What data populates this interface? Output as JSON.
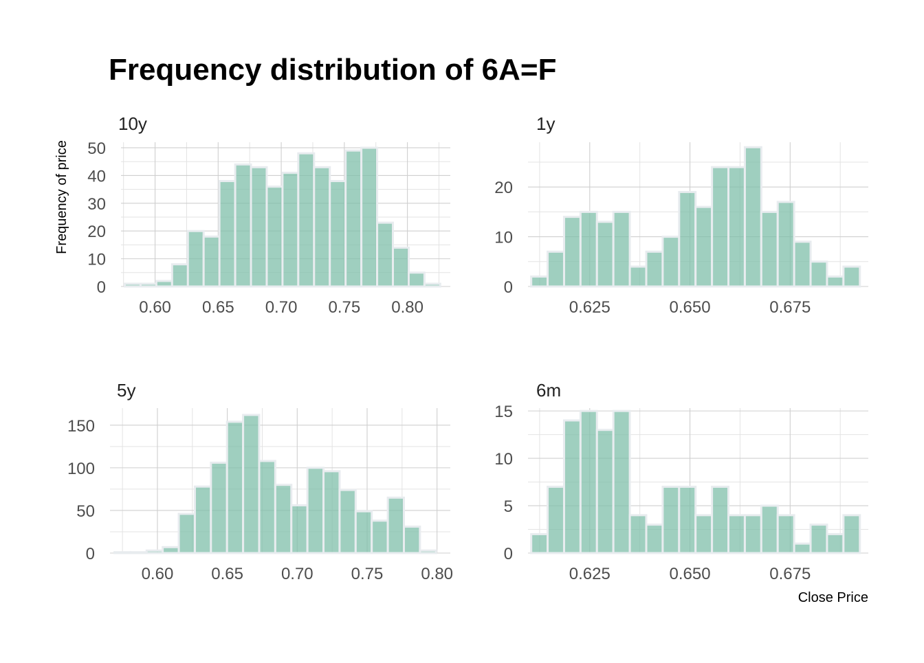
{
  "chart_data": [
    {
      "type": "bar",
      "panel": "10y",
      "title": "Frequency distribution of 6A=F",
      "ylabel": "Frequency of price",
      "xlabel": "",
      "bin_width": 0.0125,
      "x_start": 0.576,
      "xlim": [
        0.573,
        0.834
      ],
      "ylim": [
        0,
        52
      ],
      "x_ticks": [
        0.6,
        0.65,
        0.7,
        0.75,
        0.8
      ],
      "x_tick_labels": [
        "0.60",
        "0.65",
        "0.70",
        "0.75",
        "0.80"
      ],
      "y_ticks": [
        0,
        10,
        20,
        30,
        40,
        50
      ],
      "y_tick_labels": [
        "0",
        "10",
        "20",
        "30",
        "40",
        "50"
      ],
      "values": [
        1,
        1,
        2,
        8,
        20,
        18,
        38,
        44,
        43,
        36,
        41,
        48,
        43,
        38,
        49,
        50,
        23,
        14,
        5,
        1
      ],
      "grid": true
    },
    {
      "type": "bar",
      "panel": "1y",
      "ylabel": "",
      "xlabel": "",
      "bin_width": 0.0041,
      "x_start": 0.6104,
      "xlim": [
        0.6096,
        0.6945
      ],
      "ylim": [
        0,
        29
      ],
      "x_ticks": [
        0.625,
        0.65,
        0.675
      ],
      "x_tick_labels": [
        "0.625",
        "0.650",
        "0.675"
      ],
      "y_ticks": [
        0,
        10,
        20
      ],
      "y_tick_labels": [
        "0",
        "10",
        "20"
      ],
      "values": [
        2,
        7,
        14,
        15,
        13,
        15,
        4,
        7,
        10,
        19,
        16,
        24,
        24,
        28,
        15,
        17,
        9,
        5,
        2,
        4
      ],
      "grid": true
    },
    {
      "type": "bar",
      "panel": "5y",
      "ylabel": "",
      "xlabel": "",
      "bin_width": 0.0115,
      "x_start": 0.5693,
      "xlim": [
        0.5661,
        0.8095
      ],
      "ylim": [
        0,
        170
      ],
      "x_ticks": [
        0.6,
        0.65,
        0.7,
        0.75,
        0.8
      ],
      "x_tick_labels": [
        "0.60",
        "0.65",
        "0.70",
        "0.75",
        "0.80"
      ],
      "y_ticks": [
        0,
        50,
        100,
        150
      ],
      "y_tick_labels": [
        "0",
        "50",
        "100",
        "150"
      ],
      "values": [
        1,
        1,
        3,
        7,
        46,
        78,
        106,
        154,
        162,
        108,
        80,
        56,
        100,
        96,
        74,
        49,
        38,
        65,
        31,
        3
      ],
      "grid": true
    },
    {
      "type": "bar",
      "panel": "6m",
      "ylabel": "",
      "xlabel": "Close Price",
      "bin_width": 0.0041,
      "x_start": 0.6104,
      "xlim": [
        0.6096,
        0.6945
      ],
      "ylim": [
        0,
        15.3
      ],
      "x_ticks": [
        0.625,
        0.65,
        0.675
      ],
      "x_tick_labels": [
        "0.625",
        "0.650",
        "0.675"
      ],
      "y_ticks": [
        0,
        5,
        10,
        15
      ],
      "y_tick_labels": [
        "0",
        "5",
        "10",
        "15"
      ],
      "values": [
        2,
        7,
        14,
        15,
        13,
        15,
        4,
        3,
        7,
        7,
        4,
        7,
        4,
        4,
        5,
        4,
        1,
        3,
        2,
        4
      ],
      "grid": true
    }
  ],
  "colors": {
    "bar_fill": "#7fbfaa",
    "bar_edge": "#e8ecef",
    "grid": "#cfcfcf",
    "text": "#4d4d4d"
  }
}
